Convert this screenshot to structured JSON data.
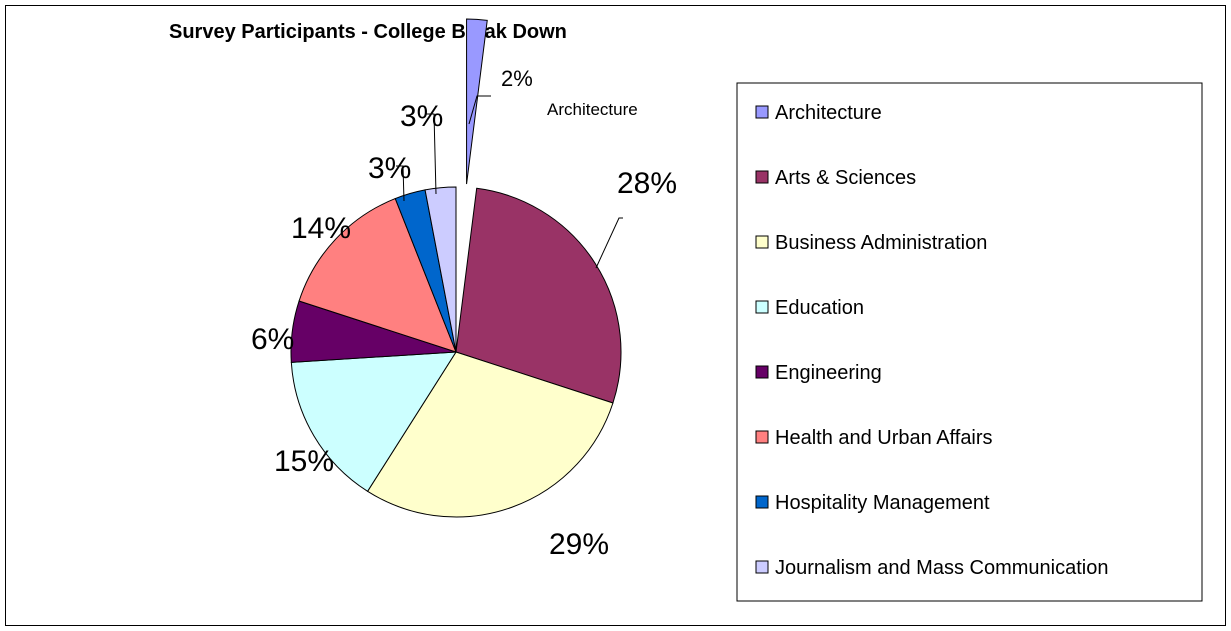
{
  "chart_data": {
    "type": "pie",
    "title": "Survey Participants - College Break Down",
    "slices": [
      {
        "label": "Architecture",
        "value": 2,
        "display": "2%",
        "color": "#9999FF",
        "exploded": true
      },
      {
        "label": "Arts & Sciences",
        "value": 28,
        "display": "28%",
        "color": "#993366"
      },
      {
        "label": "Business Administration",
        "value": 29,
        "display": "29%",
        "color": "#FFFFCC"
      },
      {
        "label": "Education",
        "value": 15,
        "display": "15%",
        "color": "#CCFFFF"
      },
      {
        "label": "Engineering",
        "value": 6,
        "display": "6%",
        "color": "#660066"
      },
      {
        "label": "Health and Urban Affairs",
        "value": 14,
        "display": "14%",
        "color": "#FF8080"
      },
      {
        "label": "Hospitality Management",
        "value": 3,
        "display": "3%",
        "color": "#0066CC"
      },
      {
        "label": "Journalism and Mass Communication",
        "value": 3,
        "display": "3%",
        "color": "#CCCCFF"
      }
    ],
    "category_label": "Architecture",
    "legend_position": "right"
  }
}
